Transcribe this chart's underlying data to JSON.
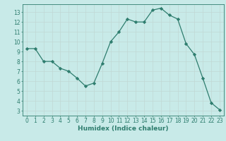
{
  "x": [
    0,
    1,
    2,
    3,
    4,
    5,
    6,
    7,
    8,
    9,
    10,
    11,
    12,
    13,
    14,
    15,
    16,
    17,
    18,
    19,
    20,
    21,
    22,
    23
  ],
  "y": [
    9.3,
    9.3,
    8.0,
    8.0,
    7.3,
    7.0,
    6.3,
    5.5,
    5.8,
    7.8,
    10.0,
    11.0,
    12.3,
    12.0,
    12.0,
    13.2,
    13.4,
    12.7,
    12.3,
    9.8,
    8.7,
    6.3,
    3.8,
    3.1
  ],
  "line_color": "#2e7d6e",
  "marker": "D",
  "marker_size": 2.2,
  "bg_color": "#c8eae8",
  "grid_color": "#c0d8d4",
  "axis_color": "#2e7d6e",
  "tick_color": "#2e7d6e",
  "xlabel": "Humidex (Indice chaleur)",
  "xlabel_fontsize": 6.5,
  "tick_fontsize": 5.5,
  "xlim": [
    -0.5,
    23.5
  ],
  "ylim": [
    2.5,
    13.8
  ],
  "yticks": [
    3,
    4,
    5,
    6,
    7,
    8,
    9,
    10,
    11,
    12,
    13
  ],
  "xticks": [
    0,
    1,
    2,
    3,
    4,
    5,
    6,
    7,
    8,
    9,
    10,
    11,
    12,
    13,
    14,
    15,
    16,
    17,
    18,
    19,
    20,
    21,
    22,
    23
  ]
}
